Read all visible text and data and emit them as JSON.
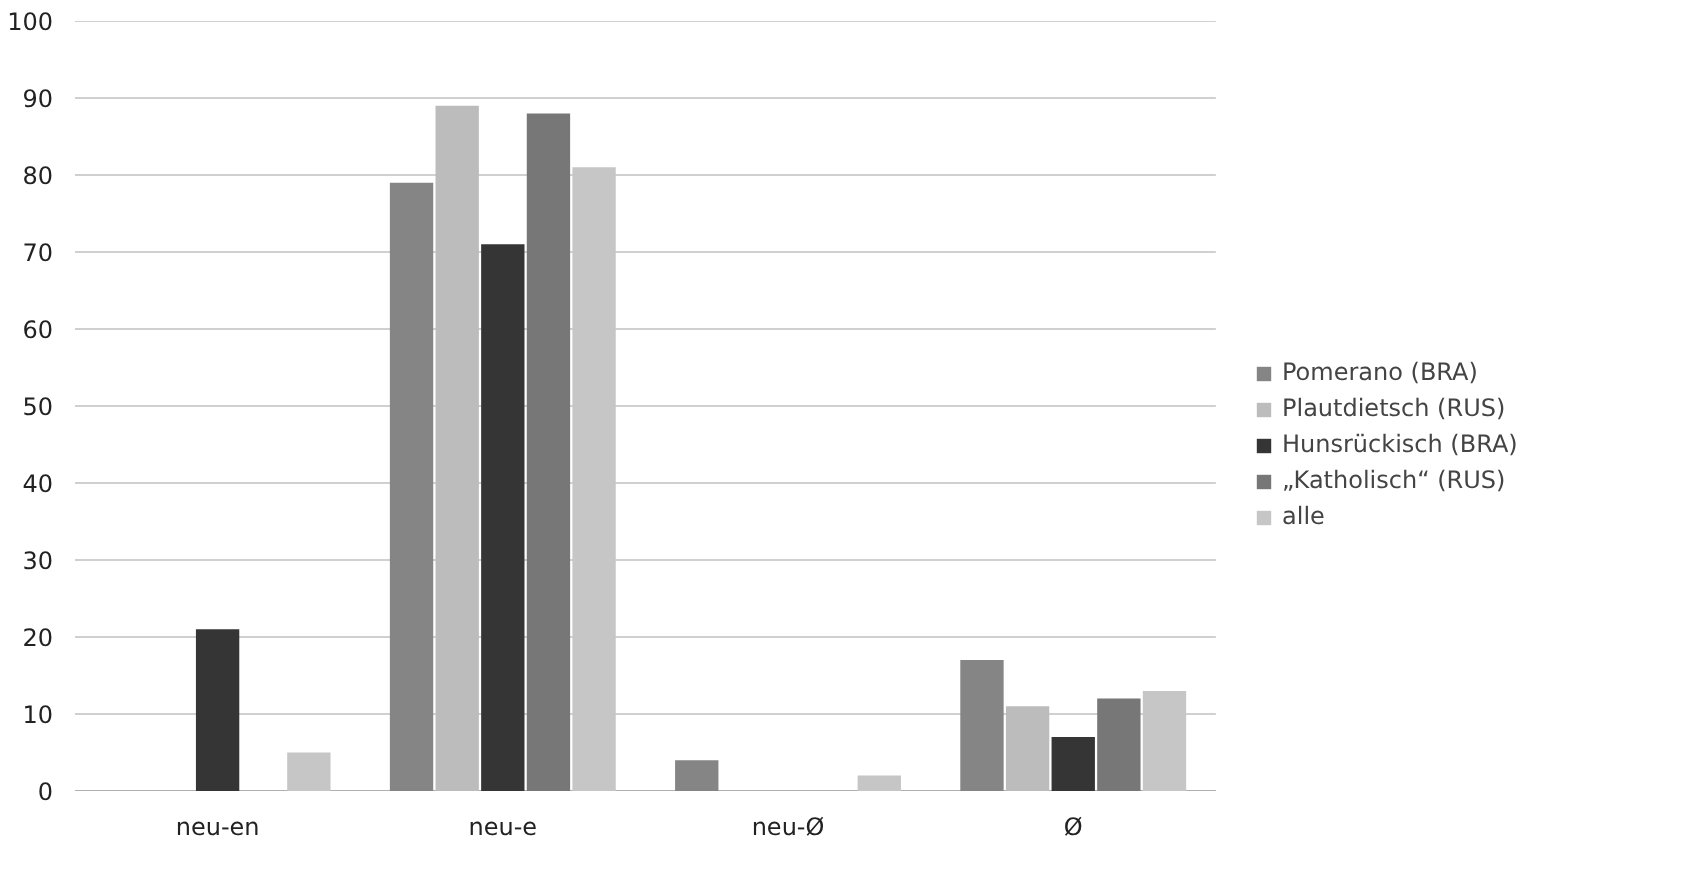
{
  "chart_data": {
    "type": "bar",
    "categories": [
      "neu-en",
      "neu-e",
      "neu-Ø",
      "Ø"
    ],
    "series": [
      {
        "name": "Pomerano (BRA)",
        "color": "#858585",
        "values": [
          0,
          79,
          4,
          17
        ]
      },
      {
        "name": "Plautdietsch (RUS)",
        "color": "#bcbcbc",
        "values": [
          0,
          89,
          0,
          11
        ]
      },
      {
        "name": "Hunsrückisch (BRA)",
        "color": "#353535",
        "values": [
          21,
          71,
          0,
          7
        ]
      },
      {
        "name": "„Katholisch“ (RUS)",
        "color": "#777777",
        "values": [
          0,
          88,
          0,
          12
        ]
      },
      {
        "name": "alle",
        "color": "#c6c6c6",
        "values": [
          5,
          81,
          2,
          13
        ]
      }
    ],
    "ylim": [
      0,
      100
    ],
    "yticks": [
      0,
      10,
      20,
      30,
      40,
      50,
      60,
      70,
      80,
      90,
      100
    ],
    "grid": "y",
    "legend": "right"
  }
}
